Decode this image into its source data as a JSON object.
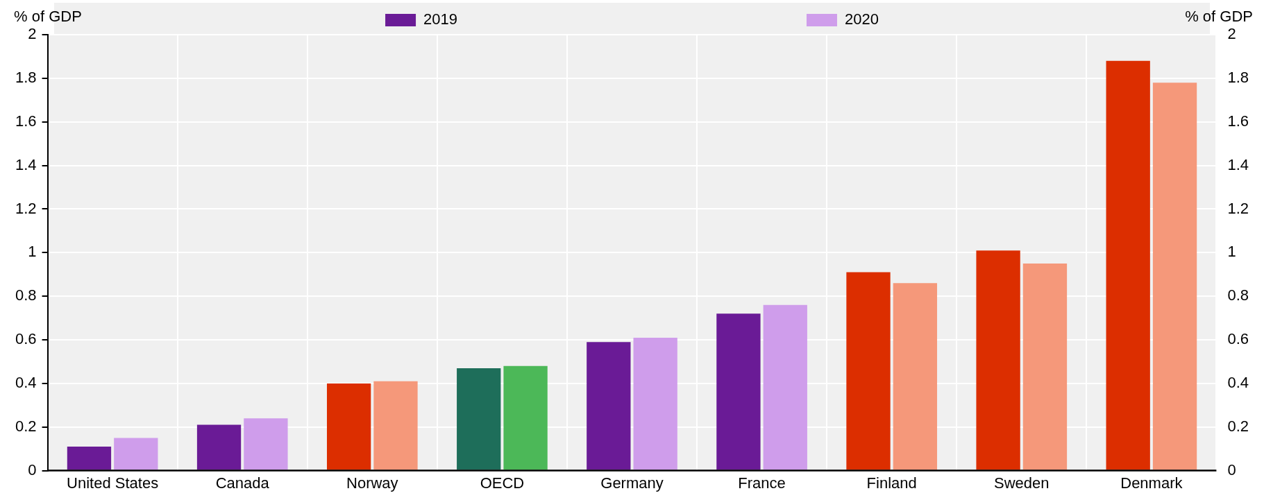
{
  "chart_data": {
    "type": "bar",
    "categories": [
      "United States",
      "Canada",
      "Norway",
      "OECD",
      "Germany",
      "France",
      "Finland",
      "Sweden",
      "Denmark"
    ],
    "series": [
      {
        "name": "2019",
        "color": "#6a1b96",
        "colors": [
          "#6a1b96",
          "#6a1b96",
          "#dc2e00",
          "#1e6e5a",
          "#6a1b96",
          "#6a1b96",
          "#dc2e00",
          "#dc2e00",
          "#dc2e00"
        ],
        "values": [
          0.11,
          0.21,
          0.4,
          0.47,
          0.59,
          0.72,
          0.91,
          1.01,
          1.88
        ]
      },
      {
        "name": "2020",
        "color": "#cf9deb",
        "colors": [
          "#cf9deb",
          "#cf9deb",
          "#f5987a",
          "#4cb858",
          "#cf9deb",
          "#cf9deb",
          "#f5987a",
          "#f5987a",
          "#f5987a"
        ],
        "values": [
          0.15,
          0.24,
          0.41,
          0.48,
          0.61,
          0.76,
          0.86,
          0.95,
          1.78
        ]
      }
    ],
    "ylabel": "% of GDP",
    "y2label": "% of GDP",
    "ylim": [
      0,
      2
    ],
    "yticks": [
      0,
      0.2,
      0.4,
      0.6,
      0.8,
      1,
      1.2,
      1.4,
      1.6,
      1.8,
      2
    ],
    "y2lim": [
      0,
      2
    ],
    "y2ticks": [
      0,
      0.2,
      0.4,
      0.6,
      0.8,
      1,
      1.2,
      1.4,
      1.6,
      1.8,
      2
    ],
    "grid": true,
    "legend": "top"
  }
}
